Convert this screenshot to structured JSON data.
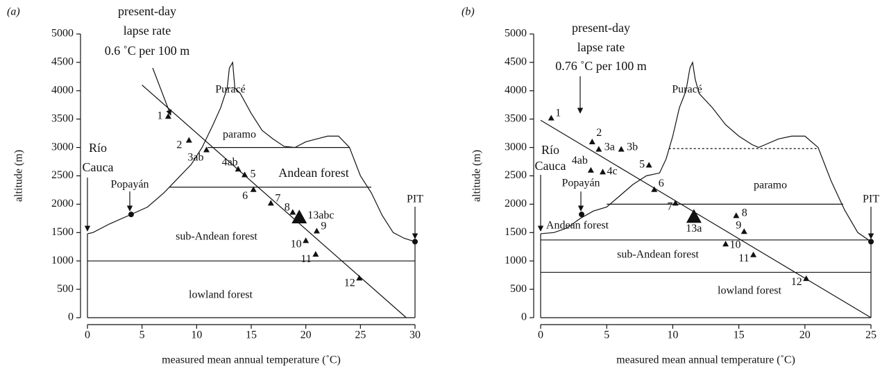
{
  "chart_data": [
    {
      "type": "scatter",
      "panel": "(a)",
      "xlabel": "measured mean annual temperature (˚C)",
      "ylabel": "altitude (m)",
      "xlim": [
        0,
        30
      ],
      "ylim": [
        0,
        5000
      ],
      "xticks": [
        0,
        5,
        10,
        15,
        20,
        25,
        30
      ],
      "yticks": [
        0,
        500,
        1000,
        1500,
        2000,
        2500,
        3000,
        3500,
        4000,
        4500,
        5000
      ],
      "points": {
        "labels": [
          "1",
          "2",
          "3ab",
          "4ab",
          "5",
          "6",
          "7",
          "8",
          "13abc",
          "9",
          "10",
          "11",
          "12"
        ],
        "x": [
          7.4,
          9.3,
          10.9,
          13.8,
          14.4,
          15.2,
          16.8,
          18.8,
          19.4,
          21,
          20,
          20.9,
          24.9
        ],
        "y": [
          3550,
          3130,
          2960,
          2620,
          2520,
          2260,
          2020,
          1860,
          1770,
          1530,
          1360,
          1120,
          700
        ]
      },
      "lapse_rate": {
        "label": [
          "present-day",
          "lapse rate",
          "0.6 ˚C per 100 m"
        ],
        "x": [
          5,
          29.2
        ],
        "y": [
          4100,
          0
        ]
      },
      "terrain": {
        "x": [
          0,
          0.5,
          2,
          4,
          5.5,
          7,
          8,
          9.5,
          10.5,
          11.5,
          12.2,
          12.8,
          13,
          13.3,
          13.5,
          14,
          15,
          16,
          17,
          18,
          19,
          20,
          21,
          22,
          23,
          24,
          25,
          26,
          27,
          28,
          29,
          30
        ],
        "y": [
          1480,
          1500,
          1650,
          1820,
          1950,
          2200,
          2400,
          2700,
          3000,
          3400,
          3700,
          4050,
          4400,
          4500,
          4050,
          3950,
          3600,
          3300,
          3150,
          3020,
          3000,
          3100,
          3150,
          3200,
          3200,
          3000,
          2500,
          2200,
          1800,
          1500,
          1400,
          1340
        ]
      },
      "boundaries": [
        {
          "y": 4050,
          "x": [
            12.8,
            13.5
          ],
          "dashed": true
        },
        {
          "y": 3000,
          "x": [
            11,
            24
          ],
          "dashed": false
        },
        {
          "y": 2300,
          "x": [
            7.5,
            26
          ],
          "dashed": false
        },
        {
          "y": 1000,
          "x": [
            0,
            30
          ],
          "dashed": false
        }
      ],
      "peak": "Puracé",
      "zones": [
        "paramo",
        "Andean forest",
        "sub-Andean forest",
        "lowland forest"
      ],
      "places": [
        {
          "name": [
            "Río",
            "Cauca"
          ],
          "x": 0,
          "y": 1480,
          "marker": "arrow"
        },
        {
          "name": [
            "Popayán"
          ],
          "x": 4,
          "y": 1820,
          "marker": "dot"
        },
        {
          "name": [
            "PIT"
          ],
          "x": 30,
          "y": 1340,
          "marker": "dot"
        }
      ]
    },
    {
      "type": "scatter",
      "panel": "(b)",
      "xlabel": "measured mean annual temperature (˚C)",
      "ylabel": "altitude (m)",
      "xlim": [
        0,
        25
      ],
      "ylim": [
        0,
        5000
      ],
      "xticks": [
        0,
        5,
        10,
        15,
        20,
        25
      ],
      "yticks": [
        0,
        500,
        1000,
        1500,
        2000,
        2500,
        3000,
        3500,
        4000,
        4500,
        5000
      ],
      "points": {
        "labels": [
          "1",
          "2",
          "3a",
          "3b",
          "4ab",
          "4c",
          "5",
          "6",
          "7",
          "13a",
          "8",
          "9",
          "10",
          "11",
          "12"
        ],
        "x": [
          0.8,
          3.9,
          4.4,
          6.1,
          3.8,
          4.7,
          8.2,
          8.6,
          10.2,
          11.6,
          14.8,
          15.4,
          14,
          16.1,
          20.1
        ],
        "y": [
          3520,
          3100,
          2970,
          2970,
          2600,
          2570,
          2690,
          2260,
          2020,
          1780,
          1800,
          1520,
          1300,
          1110,
          690
        ]
      },
      "lapse_rate": {
        "label": [
          "present-day",
          "lapse rate",
          "0.76 ˚C per 100 m"
        ],
        "x": [
          0,
          25
        ],
        "y": [
          3480,
          0
        ]
      },
      "terrain": {
        "x": [
          0,
          1,
          2,
          3,
          4,
          5,
          6,
          7,
          8,
          9,
          9.5,
          10,
          10.5,
          11,
          11.3,
          11.5,
          11.7,
          12,
          13,
          14,
          15,
          16,
          16.5,
          17,
          18,
          19,
          20,
          21,
          22,
          23,
          24,
          25
        ],
        "y": [
          1480,
          1500,
          1580,
          1750,
          1880,
          1950,
          2150,
          2350,
          2500,
          2550,
          2800,
          3200,
          3700,
          4000,
          4400,
          4500,
          4200,
          3950,
          3700,
          3400,
          3200,
          3050,
          3000,
          3050,
          3150,
          3200,
          3200,
          3000,
          2400,
          1900,
          1500,
          1340
        ]
      },
      "boundaries": [
        {
          "y": 2980,
          "x": [
            9.7,
            21
          ],
          "dashed": true
        },
        {
          "y": 2000,
          "x": [
            5,
            22.9
          ],
          "dashed": false
        },
        {
          "y": 1370,
          "x": [
            0,
            25
          ],
          "dashed": false
        },
        {
          "y": 800,
          "x": [
            0,
            25
          ],
          "dashed": false
        }
      ],
      "peak": "Puracé",
      "zones": [
        "paramo",
        "Andean forest",
        "sub-Andean forest",
        "lowland forest"
      ],
      "places": [
        {
          "name": [
            "Río",
            "Cauca"
          ],
          "x": 0,
          "y": 1480,
          "marker": "arrow"
        },
        {
          "name": [
            "Popayán"
          ],
          "x": 3.1,
          "y": 1820,
          "marker": "dot"
        },
        {
          "name": [
            "PIT"
          ],
          "x": 25,
          "y": 1340,
          "marker": "dot"
        }
      ]
    }
  ]
}
